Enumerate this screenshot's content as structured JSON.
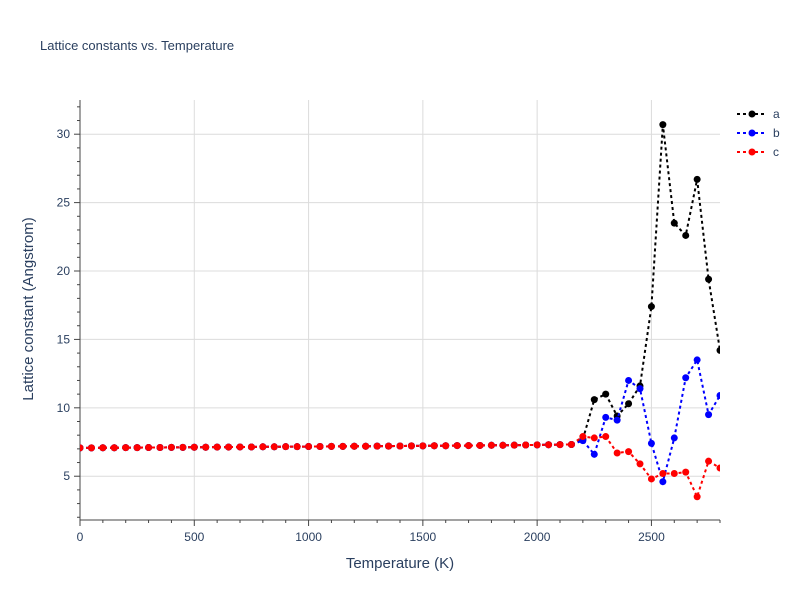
{
  "chart_data": {
    "type": "line",
    "title": "Lattice constants vs. Temperature",
    "xlabel": "Temperature (K)",
    "ylabel": "Lattice constant (Angstrom)",
    "xlim": [
      0,
      2800
    ],
    "ylim": [
      1.8,
      32.5
    ],
    "xticks": [
      0,
      500,
      1000,
      1500,
      2000,
      2500
    ],
    "yticks": [
      5,
      10,
      15,
      20,
      25,
      30
    ],
    "grid": true,
    "legend_position": "top-right",
    "x": [
      0,
      50,
      100,
      150,
      200,
      250,
      300,
      350,
      400,
      450,
      500,
      550,
      600,
      650,
      700,
      750,
      800,
      850,
      900,
      950,
      1000,
      1050,
      1100,
      1150,
      1200,
      1250,
      1300,
      1350,
      1400,
      1450,
      1500,
      1550,
      1600,
      1650,
      1700,
      1750,
      1800,
      1850,
      1900,
      1950,
      2000,
      2050,
      2100,
      2150,
      2200,
      2250,
      2300,
      2350,
      2400,
      2450,
      2500,
      2550,
      2600,
      2650,
      2700,
      2750,
      2800
    ],
    "series": [
      {
        "name": "a",
        "color": "#000000",
        "values": [
          7.07,
          7.07,
          7.08,
          7.08,
          7.09,
          7.09,
          7.1,
          7.1,
          7.11,
          7.11,
          7.12,
          7.12,
          7.13,
          7.13,
          7.14,
          7.14,
          7.15,
          7.15,
          7.16,
          7.16,
          7.17,
          7.17,
          7.18,
          7.18,
          7.19,
          7.19,
          7.2,
          7.2,
          7.21,
          7.22,
          7.22,
          7.23,
          7.23,
          7.24,
          7.24,
          7.25,
          7.26,
          7.26,
          7.27,
          7.28,
          7.29,
          7.3,
          7.31,
          7.32,
          7.7,
          10.6,
          11.0,
          9.4,
          10.3,
          11.6,
          17.4,
          30.7,
          23.5,
          22.6,
          26.7,
          19.4,
          14.2
        ]
      },
      {
        "name": "b",
        "color": "#0000ff",
        "values": [
          7.07,
          7.07,
          7.08,
          7.08,
          7.09,
          7.09,
          7.1,
          7.1,
          7.11,
          7.11,
          7.12,
          7.12,
          7.13,
          7.13,
          7.14,
          7.14,
          7.15,
          7.15,
          7.16,
          7.16,
          7.17,
          7.17,
          7.18,
          7.18,
          7.19,
          7.19,
          7.2,
          7.2,
          7.21,
          7.22,
          7.22,
          7.23,
          7.23,
          7.24,
          7.24,
          7.25,
          7.26,
          7.26,
          7.27,
          7.28,
          7.29,
          7.3,
          7.31,
          7.32,
          7.6,
          6.6,
          9.3,
          9.1,
          12.0,
          11.4,
          7.4,
          4.6,
          7.8,
          12.2,
          13.5,
          9.5,
          10.9
        ]
      },
      {
        "name": "c",
        "color": "#ff0000",
        "values": [
          7.07,
          7.07,
          7.08,
          7.08,
          7.09,
          7.09,
          7.1,
          7.1,
          7.11,
          7.11,
          7.12,
          7.12,
          7.13,
          7.13,
          7.14,
          7.14,
          7.15,
          7.15,
          7.16,
          7.16,
          7.17,
          7.17,
          7.18,
          7.18,
          7.19,
          7.19,
          7.2,
          7.2,
          7.21,
          7.22,
          7.22,
          7.23,
          7.23,
          7.24,
          7.24,
          7.25,
          7.26,
          7.26,
          7.27,
          7.28,
          7.29,
          7.3,
          7.31,
          7.32,
          7.9,
          7.8,
          7.9,
          6.7,
          6.8,
          5.9,
          4.8,
          5.2,
          5.2,
          5.3,
          3.5,
          6.1,
          5.6
        ]
      }
    ]
  }
}
